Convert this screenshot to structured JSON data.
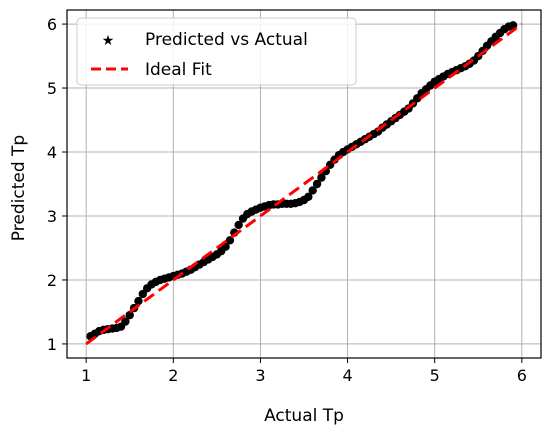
{
  "chart_data": {
    "type": "scatter",
    "xlabel": "Actual Tp",
    "ylabel": "Predicted Tp",
    "xlim": [
      0.78,
      6.22
    ],
    "ylim": [
      0.78,
      6.22
    ],
    "xticks": [
      1,
      2,
      3,
      4,
      5,
      6
    ],
    "yticks": [
      1,
      2,
      3,
      4,
      5,
      6
    ],
    "grid": true,
    "legend_position": "top-left",
    "series": [
      {
        "name": "Predicted vs Actual",
        "kind": "points",
        "marker": "star",
        "color": "#000000",
        "points": [
          [
            1.05,
            1.12
          ],
          [
            1.1,
            1.16
          ],
          [
            1.15,
            1.2
          ],
          [
            1.2,
            1.22
          ],
          [
            1.25,
            1.23
          ],
          [
            1.3,
            1.24
          ],
          [
            1.35,
            1.25
          ],
          [
            1.4,
            1.27
          ],
          [
            1.45,
            1.35
          ],
          [
            1.5,
            1.45
          ],
          [
            1.55,
            1.56
          ],
          [
            1.6,
            1.67
          ],
          [
            1.65,
            1.78
          ],
          [
            1.7,
            1.87
          ],
          [
            1.75,
            1.93
          ],
          [
            1.8,
            1.97
          ],
          [
            1.85,
            2.0
          ],
          [
            1.9,
            2.02
          ],
          [
            1.95,
            2.04
          ],
          [
            2.0,
            2.06
          ],
          [
            2.05,
            2.08
          ],
          [
            2.1,
            2.1
          ],
          [
            2.15,
            2.13
          ],
          [
            2.2,
            2.16
          ],
          [
            2.25,
            2.2
          ],
          [
            2.3,
            2.24
          ],
          [
            2.35,
            2.28
          ],
          [
            2.4,
            2.32
          ],
          [
            2.45,
            2.36
          ],
          [
            2.5,
            2.4
          ],
          [
            2.55,
            2.45
          ],
          [
            2.6,
            2.52
          ],
          [
            2.65,
            2.62
          ],
          [
            2.7,
            2.74
          ],
          [
            2.75,
            2.86
          ],
          [
            2.8,
            2.96
          ],
          [
            2.85,
            3.03
          ],
          [
            2.9,
            3.07
          ],
          [
            2.95,
            3.1
          ],
          [
            3.0,
            3.13
          ],
          [
            3.05,
            3.15
          ],
          [
            3.1,
            3.17
          ],
          [
            3.15,
            3.18
          ],
          [
            3.2,
            3.18
          ],
          [
            3.25,
            3.19
          ],
          [
            3.3,
            3.19
          ],
          [
            3.35,
            3.19
          ],
          [
            3.4,
            3.2
          ],
          [
            3.45,
            3.22
          ],
          [
            3.5,
            3.25
          ],
          [
            3.55,
            3.3
          ],
          [
            3.6,
            3.4
          ],
          [
            3.65,
            3.5
          ],
          [
            3.7,
            3.6
          ],
          [
            3.75,
            3.7
          ],
          [
            3.8,
            3.8
          ],
          [
            3.85,
            3.88
          ],
          [
            3.9,
            3.95
          ],
          [
            3.95,
            4.0
          ],
          [
            4.0,
            4.04
          ],
          [
            4.05,
            4.08
          ],
          [
            4.1,
            4.12
          ],
          [
            4.15,
            4.16
          ],
          [
            4.2,
            4.2
          ],
          [
            4.25,
            4.24
          ],
          [
            4.3,
            4.28
          ],
          [
            4.35,
            4.32
          ],
          [
            4.4,
            4.38
          ],
          [
            4.45,
            4.43
          ],
          [
            4.5,
            4.48
          ],
          [
            4.55,
            4.53
          ],
          [
            4.6,
            4.58
          ],
          [
            4.65,
            4.63
          ],
          [
            4.7,
            4.68
          ],
          [
            4.75,
            4.76
          ],
          [
            4.8,
            4.84
          ],
          [
            4.85,
            4.92
          ],
          [
            4.9,
            4.98
          ],
          [
            4.95,
            5.04
          ],
          [
            5.0,
            5.1
          ],
          [
            5.05,
            5.14
          ],
          [
            5.1,
            5.18
          ],
          [
            5.15,
            5.22
          ],
          [
            5.2,
            5.25
          ],
          [
            5.25,
            5.28
          ],
          [
            5.3,
            5.31
          ],
          [
            5.35,
            5.34
          ],
          [
            5.4,
            5.38
          ],
          [
            5.45,
            5.43
          ],
          [
            5.5,
            5.5
          ],
          [
            5.55,
            5.58
          ],
          [
            5.6,
            5.66
          ],
          [
            5.65,
            5.73
          ],
          [
            5.7,
            5.8
          ],
          [
            5.75,
            5.86
          ],
          [
            5.8,
            5.92
          ],
          [
            5.85,
            5.96
          ],
          [
            5.9,
            5.98
          ]
        ]
      },
      {
        "name": "Ideal Fit",
        "kind": "line",
        "style": "dashed",
        "color": "#ff0000",
        "points": [
          [
            1,
            1
          ],
          [
            6,
            6
          ]
        ]
      }
    ]
  }
}
